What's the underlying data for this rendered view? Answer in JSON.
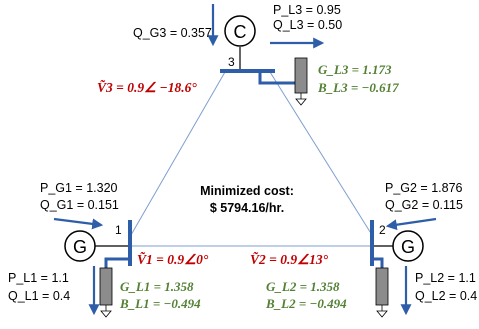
{
  "cost": {
    "label": "Minimized cost:",
    "value": "$ 5794.16/hr."
  },
  "bus1": {
    "number": "1",
    "generator_symbol": "G",
    "pg": "P_G1 = 1.320",
    "qg": "Q_G1 = 0.151",
    "pl": "P_L1 = 1.1",
    "ql": "Q_L1 = 0.4",
    "voltage": "Ṽ1 = 0.9∠0°",
    "gl": "G_L1 = 1.358",
    "bl": "B_L1 = −0.494"
  },
  "bus2": {
    "number": "2",
    "generator_symbol": "G",
    "pg": "P_G2 = 1.876",
    "qg": "Q_G2 = 0.115",
    "pl": "P_L2 = 1.1",
    "ql": "Q_L2 = 0.4",
    "voltage": "Ṽ2 = 0.9∠13°",
    "gl": "G_L2 = 1.358",
    "bl": "B_L2 = −0.494"
  },
  "bus3": {
    "number": "3",
    "condenser_symbol": "C",
    "qg": "Q_G3 = 0.357",
    "pl": "P_L3 = 0.95",
    "ql": "Q_L3 = 0.50",
    "voltage": "Ṽ3 = 0.9∠ −18.6°",
    "gl": "G_L3 = 1.173",
    "bl": "B_L3 = −0.617"
  },
  "colors": {
    "arrow_blue": "#2e5ea8",
    "bus_blue": "#2e5ea8",
    "line_blue": "#7f9fcf",
    "voltage_red": "#c00000",
    "load_green": "#538135",
    "load_box": "#8c8c8c"
  }
}
